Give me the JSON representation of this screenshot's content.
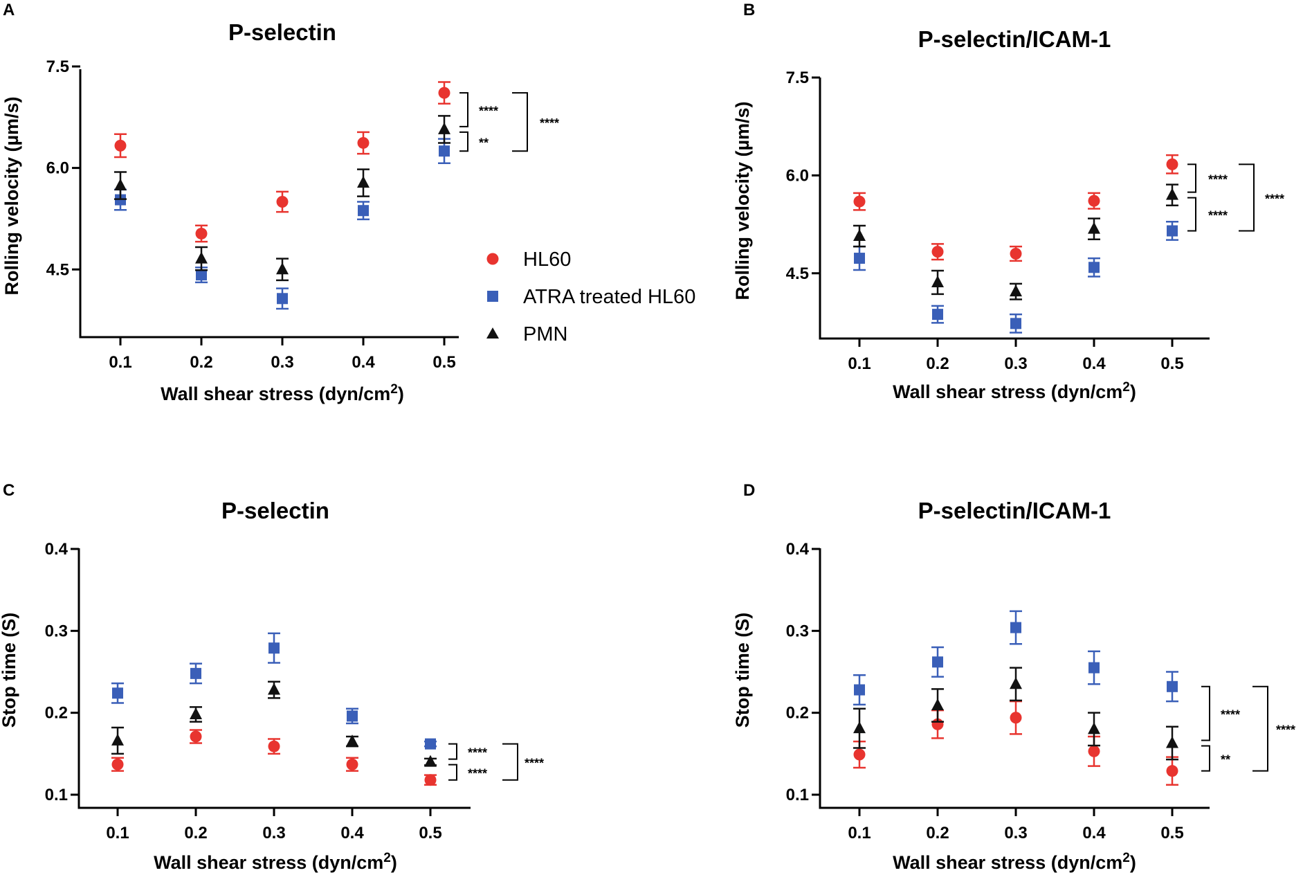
{
  "legend": [
    {
      "label": "HL60",
      "color": "#e8342f",
      "marker": "circle"
    },
    {
      "label": "ATRA treated HL60",
      "color": "#3a5fb8",
      "marker": "square"
    },
    {
      "label": "PMN",
      "color": "#111111",
      "marker": "triangle"
    }
  ],
  "chart_data": [
    {
      "panel": "A",
      "type": "scatter",
      "title": "P-selectin",
      "xlabel": "Wall shear stress (dyn/cm2)",
      "ylabel": "Rolling velocity (µm/s)",
      "categories": [
        "0.1",
        "0.2",
        "0.3",
        "0.4",
        "0.5"
      ],
      "ylim": [
        3.5,
        7.5
      ],
      "yticks": [
        "4.5",
        "6.0",
        "7.5"
      ],
      "series": [
        {
          "name": "HL60",
          "values": [
            6.33,
            5.03,
            5.5,
            6.37,
            7.11
          ],
          "errors": [
            0.17,
            0.12,
            0.15,
            0.16,
            0.16
          ]
        },
        {
          "name": "ATRA treated HL60",
          "values": [
            5.53,
            4.42,
            4.07,
            5.37,
            6.25
          ],
          "errors": [
            0.15,
            0.11,
            0.15,
            0.13,
            0.18
          ]
        },
        {
          "name": "PMN",
          "values": [
            5.74,
            4.66,
            4.5,
            5.78,
            6.57
          ],
          "errors": [
            0.2,
            0.17,
            0.16,
            0.2,
            0.2
          ]
        }
      ],
      "significance": [
        {
          "between": [
            "HL60",
            "PMN"
          ],
          "label": "****"
        },
        {
          "between": [
            "PMN",
            "ATRA treated HL60"
          ],
          "label": "**"
        },
        {
          "between": [
            "HL60",
            "ATRA treated HL60"
          ],
          "label": "****"
        }
      ]
    },
    {
      "panel": "B",
      "type": "scatter",
      "title": "P-selectin/ICAM-1",
      "xlabel": "Wall shear stress (dyn/cm2)",
      "ylabel": "Rolling velocity (µm/s)",
      "categories": [
        "0.1",
        "0.2",
        "0.3",
        "0.4",
        "0.5"
      ],
      "ylim": [
        3.5,
        7.5
      ],
      "yticks": [
        "4.5",
        "6.0",
        "7.5"
      ],
      "series": [
        {
          "name": "HL60",
          "values": [
            5.6,
            4.83,
            4.8,
            5.61,
            6.17
          ],
          "errors": [
            0.13,
            0.12,
            0.11,
            0.12,
            0.14
          ]
        },
        {
          "name": "ATRA treated HL60",
          "values": [
            4.73,
            3.87,
            3.73,
            4.59,
            5.15
          ],
          "errors": [
            0.18,
            0.13,
            0.14,
            0.14,
            0.14
          ]
        },
        {
          "name": "PMN",
          "values": [
            5.07,
            4.36,
            4.22,
            5.18,
            5.7
          ],
          "errors": [
            0.16,
            0.18,
            0.12,
            0.16,
            0.16
          ]
        }
      ],
      "significance": [
        {
          "between": [
            "HL60",
            "PMN"
          ],
          "label": "****"
        },
        {
          "between": [
            "PMN",
            "ATRA treated HL60"
          ],
          "label": "****"
        },
        {
          "between": [
            "HL60",
            "ATRA treated HL60"
          ],
          "label": "****"
        }
      ]
    },
    {
      "panel": "C",
      "type": "scatter",
      "title": "P-selectin",
      "xlabel": "Wall shear stress (dyn/cm2)",
      "ylabel": "Stop time (S)",
      "categories": [
        "0.1",
        "0.2",
        "0.3",
        "0.4",
        "0.5"
      ],
      "ylim": [
        0.1,
        0.4
      ],
      "yticks": [
        "0.1",
        "0.2",
        "0.3",
        "0.4"
      ],
      "series": [
        {
          "name": "HL60",
          "values": [
            0.137,
            0.171,
            0.159,
            0.137,
            0.118
          ],
          "errors": [
            0.008,
            0.008,
            0.009,
            0.008,
            0.006
          ]
        },
        {
          "name": "ATRA treated HL60",
          "values": [
            0.224,
            0.248,
            0.279,
            0.196,
            0.162
          ],
          "errors": [
            0.012,
            0.012,
            0.018,
            0.009,
            0.003
          ]
        },
        {
          "name": "PMN",
          "values": [
            0.166,
            0.198,
            0.228,
            0.165,
            0.14
          ],
          "errors": [
            0.016,
            0.009,
            0.01,
            0.006,
            0.004
          ]
        }
      ],
      "significance": [
        {
          "between": [
            "ATRA treated HL60",
            "PMN"
          ],
          "label": "****"
        },
        {
          "between": [
            "PMN",
            "HL60"
          ],
          "label": "****"
        },
        {
          "between": [
            "ATRA treated HL60",
            "HL60"
          ],
          "label": "****"
        }
      ]
    },
    {
      "panel": "D",
      "type": "scatter",
      "title": "P-selectin/ICAM-1",
      "xlabel": "Wall shear stress (dyn/cm2)",
      "ylabel": "Stop time (S)",
      "categories": [
        "0.1",
        "0.2",
        "0.3",
        "0.4",
        "0.5"
      ],
      "ylim": [
        0.1,
        0.4
      ],
      "yticks": [
        "0.1",
        "0.2",
        "0.3",
        "0.4"
      ],
      "series": [
        {
          "name": "HL60",
          "values": [
            0.149,
            0.186,
            0.194,
            0.153,
            0.129
          ],
          "errors": [
            0.016,
            0.017,
            0.02,
            0.018,
            0.017
          ]
        },
        {
          "name": "ATRA treated HL60",
          "values": [
            0.228,
            0.262,
            0.304,
            0.255,
            0.232
          ],
          "errors": [
            0.018,
            0.018,
            0.02,
            0.02,
            0.018
          ]
        },
        {
          "name": "PMN",
          "values": [
            0.181,
            0.209,
            0.235,
            0.18,
            0.163
          ],
          "errors": [
            0.024,
            0.02,
            0.02,
            0.02,
            0.02
          ]
        }
      ],
      "significance": [
        {
          "between": [
            "ATRA treated HL60",
            "PMN"
          ],
          "label": "****"
        },
        {
          "between": [
            "PMN",
            "HL60"
          ],
          "label": "**"
        },
        {
          "between": [
            "ATRA treated HL60",
            "HL60"
          ],
          "label": "****"
        }
      ]
    }
  ]
}
